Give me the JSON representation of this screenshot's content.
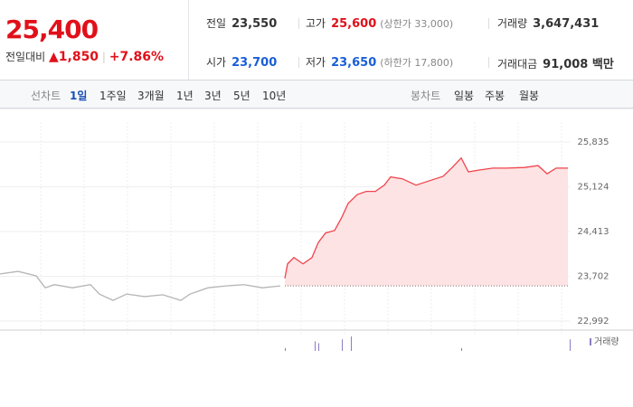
{
  "header": {
    "price": "25,400",
    "change_label": "전일대비",
    "change": "▲1,850",
    "change_pct": "+7.86%",
    "prev_label": "전일",
    "prev": "23,550",
    "high_label": "고가",
    "high": "25,600",
    "upper_limit": "(상한가 33,000)",
    "volume_label": "거래량",
    "volume": "3,647,431",
    "open_label": "시가",
    "open": "23,700",
    "low_label": "저가",
    "low": "23,650",
    "lower_limit": "(하한가 17,800)",
    "amount_label": "거래대금",
    "amount": "91,008 백만"
  },
  "tabs": {
    "line_label": "선차트",
    "line_periods": [
      "1일",
      "1주일",
      "3개월",
      "1년",
      "3년",
      "5년",
      "10년"
    ],
    "candle_label": "봉차트",
    "candle_periods": [
      "일봉",
      "주봉",
      "월봉"
    ]
  },
  "chart_data": {
    "type": "line",
    "xlim": [
      0,
      640
    ],
    "ylim": [
      22848,
      26007
    ],
    "yticks": [
      {
        "value": 22992,
        "label": "22,992"
      },
      {
        "value": 23702,
        "label": "23,702"
      },
      {
        "value": 24413,
        "label": "24,413"
      },
      {
        "value": 25124,
        "label": "25,124"
      },
      {
        "value": 25835,
        "label": "25,835"
      }
    ],
    "grid": true,
    "baseline": 23550,
    "series": [
      {
        "color": "#b5b5b5",
        "x": [
          0,
          20,
          40,
          50,
          60,
          80,
          100,
          110,
          125,
          140,
          160,
          180,
          200,
          210,
          230,
          250,
          270,
          290,
          310
        ],
        "values": [
          23740,
          23780,
          23710,
          23520,
          23570,
          23520,
          23570,
          23420,
          23320,
          23420,
          23380,
          23410,
          23320,
          23420,
          23520,
          23550,
          23570,
          23520,
          23550
        ]
      },
      {
        "color": "#f0444c",
        "fill": "#fde3e4",
        "x": [
          315,
          318,
          325,
          335,
          345,
          352,
          360,
          370,
          378,
          385,
          395,
          405,
          415,
          425,
          432,
          445,
          460,
          475,
          490,
          500,
          510,
          518,
          530,
          545,
          560,
          580,
          595,
          605,
          615,
          628
        ],
        "values": [
          23670,
          23900,
          24000,
          23900,
          24000,
          24240,
          24390,
          24430,
          24640,
          24860,
          25000,
          25050,
          25050,
          25150,
          25280,
          25250,
          25150,
          25220,
          25290,
          25430,
          25580,
          25360,
          25390,
          25420,
          25420,
          25430,
          25460,
          25330,
          25420,
          25420
        ]
      }
    ],
    "volume": {
      "name": "거래량",
      "color": "#8e7cc3",
      "x": [
        315,
        348,
        352,
        378,
        388,
        510,
        630
      ],
      "values": [
        3,
        10,
        8,
        12,
        15,
        3,
        12
      ]
    }
  }
}
